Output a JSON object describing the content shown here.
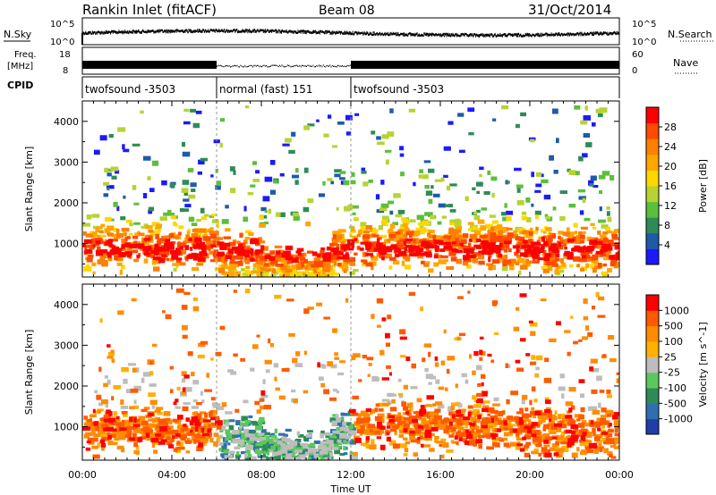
{
  "header": {
    "station": "Rankin Inlet (fitACF)",
    "beam": "Beam 08",
    "date": "31/Oct/2014"
  },
  "strips": {
    "nsky_label": "N.Sky",
    "nsearch_label": "N.Search",
    "left_ticks": [
      "10^5",
      "10^0"
    ],
    "right_ticks": [
      "10^5",
      "10^0"
    ],
    "freq_label_1": "Freq.",
    "freq_label_2": "[MHz]",
    "freq_ticks": [
      "18",
      "8"
    ],
    "nave_label": "Nave",
    "nave_ticks": [
      "60",
      "0"
    ],
    "cpid_label": "CPID",
    "cpid_segments": [
      {
        "label": "twofsound -3503",
        "start_h": 0,
        "end_h": 6
      },
      {
        "label": "normal (fast) 151",
        "start_h": 6,
        "end_h": 12
      },
      {
        "label": "twofsound -3503",
        "start_h": 12,
        "end_h": 24
      }
    ]
  },
  "chart_data": [
    {
      "type": "heatmap",
      "ylabel": "Slant Range [km]",
      "ylim": [
        180,
        4500
      ],
      "xlim_hours": [
        0,
        24
      ],
      "y_ticks": [
        "1000",
        "2000",
        "3000",
        "4000"
      ],
      "colorbar": {
        "title": "Power [dB]",
        "tick_labels": [
          "28",
          "24",
          "20",
          "16",
          "12",
          "8",
          "4"
        ],
        "colors": [
          "#1a1aff",
          "#1e5aa8",
          "#2e8b57",
          "#5bbf3a",
          "#b7d332",
          "#ffd700",
          "#ffa500",
          "#ff7f00",
          "#ff4a00",
          "#ff0000"
        ]
      }
    },
    {
      "type": "heatmap",
      "ylabel": "Slant Range [km]",
      "ylim": [
        180,
        4500
      ],
      "xlim_hours": [
        0,
        24
      ],
      "y_ticks": [
        "1000",
        "2000",
        "3000",
        "4000"
      ],
      "colorbar": {
        "title": "Velocity  [m s^-1]",
        "tick_labels": [
          "1000",
          "500",
          "100",
          "25",
          "-25",
          "-100",
          "-500",
          "-1000"
        ],
        "colors": [
          "#1f3fa8",
          "#2f6fb0",
          "#2e8b57",
          "#5cc85c",
          "#bdbdbd",
          "#ffb000",
          "#ff8c00",
          "#ff5a00",
          "#ff0000"
        ]
      }
    }
  ],
  "xaxis": {
    "label": "Time UT",
    "tick_labels": [
      "00:00",
      "04:00",
      "08:00",
      "12:00",
      "16:00",
      "20:00",
      "00:00"
    ]
  }
}
